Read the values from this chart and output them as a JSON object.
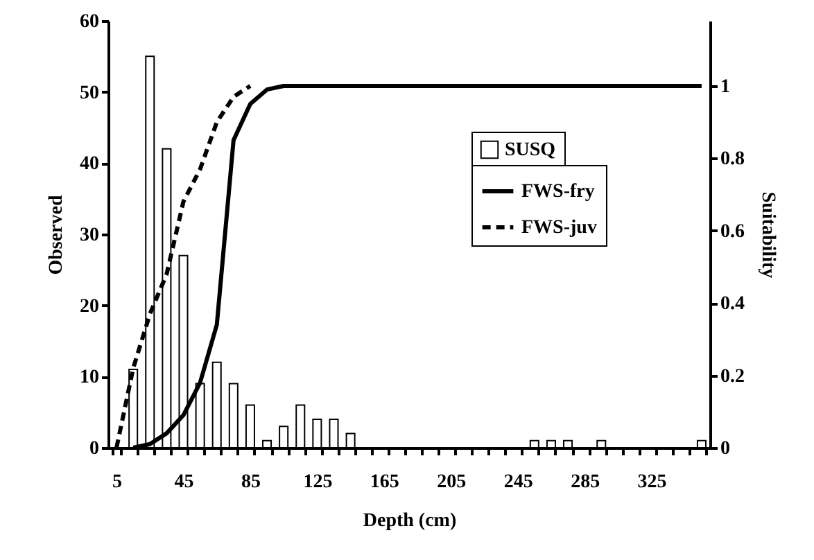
{
  "chart_data": {
    "type": "bar",
    "xlabel": "Depth (cm)",
    "ylabel": "Observed",
    "y2label": "Suitability",
    "categories": [
      "5",
      null,
      null,
      null,
      "45",
      null,
      null,
      null,
      "85",
      null,
      null,
      null,
      "125",
      null,
      null,
      null,
      "165",
      null,
      null,
      null,
      "205",
      null,
      null,
      null,
      "245",
      null,
      null,
      null,
      "285",
      null,
      null,
      null,
      "325",
      null,
      null,
      null
    ],
    "series": [
      {
        "name": "SUSQ",
        "color": "#ffffff",
        "values": [
          0,
          11,
          55,
          42,
          27,
          9,
          12,
          9,
          6,
          1,
          3,
          6,
          4,
          4,
          2,
          0,
          0,
          0,
          0,
          0,
          0,
          0,
          0,
          0,
          0,
          1,
          1,
          1,
          0,
          1,
          0,
          0,
          0,
          0,
          0,
          1
        ]
      },
      {
        "name": "FWS-fry",
        "type": "line",
        "axis": "y2",
        "color": "#000000",
        "line_style": "solid",
        "values": [
          null,
          0.0,
          0.01,
          0.04,
          0.09,
          0.18,
          0.34,
          0.85,
          0.95,
          0.99,
          1,
          1,
          1,
          1,
          1,
          1,
          1,
          1,
          1,
          1,
          1,
          1,
          1,
          1,
          1,
          1,
          1,
          1,
          1,
          1,
          1,
          1,
          1,
          1,
          1,
          1
        ]
      },
      {
        "name": "FWS-juv",
        "type": "line",
        "axis": "y2",
        "color": "#000000",
        "line_style": "dashed",
        "values": [
          0.0,
          0.22,
          0.37,
          0.48,
          0.68,
          0.77,
          0.9,
          0.97,
          1,
          null,
          null,
          null,
          null,
          null,
          null,
          null,
          null,
          null,
          null,
          null,
          null,
          null,
          null,
          null,
          null,
          null,
          null,
          null,
          null,
          null,
          null,
          null,
          null,
          null,
          null,
          null
        ]
      }
    ],
    "ylim": [
      0,
      60
    ],
    "yticks": [
      0,
      10,
      20,
      30,
      40,
      50,
      60
    ],
    "y2lim": [
      0,
      1.18
    ],
    "y2ticks": [
      0,
      0.2,
      0.4,
      0.6,
      0.8,
      1
    ],
    "grid": false,
    "legend": "top right",
    "marker": "none"
  }
}
